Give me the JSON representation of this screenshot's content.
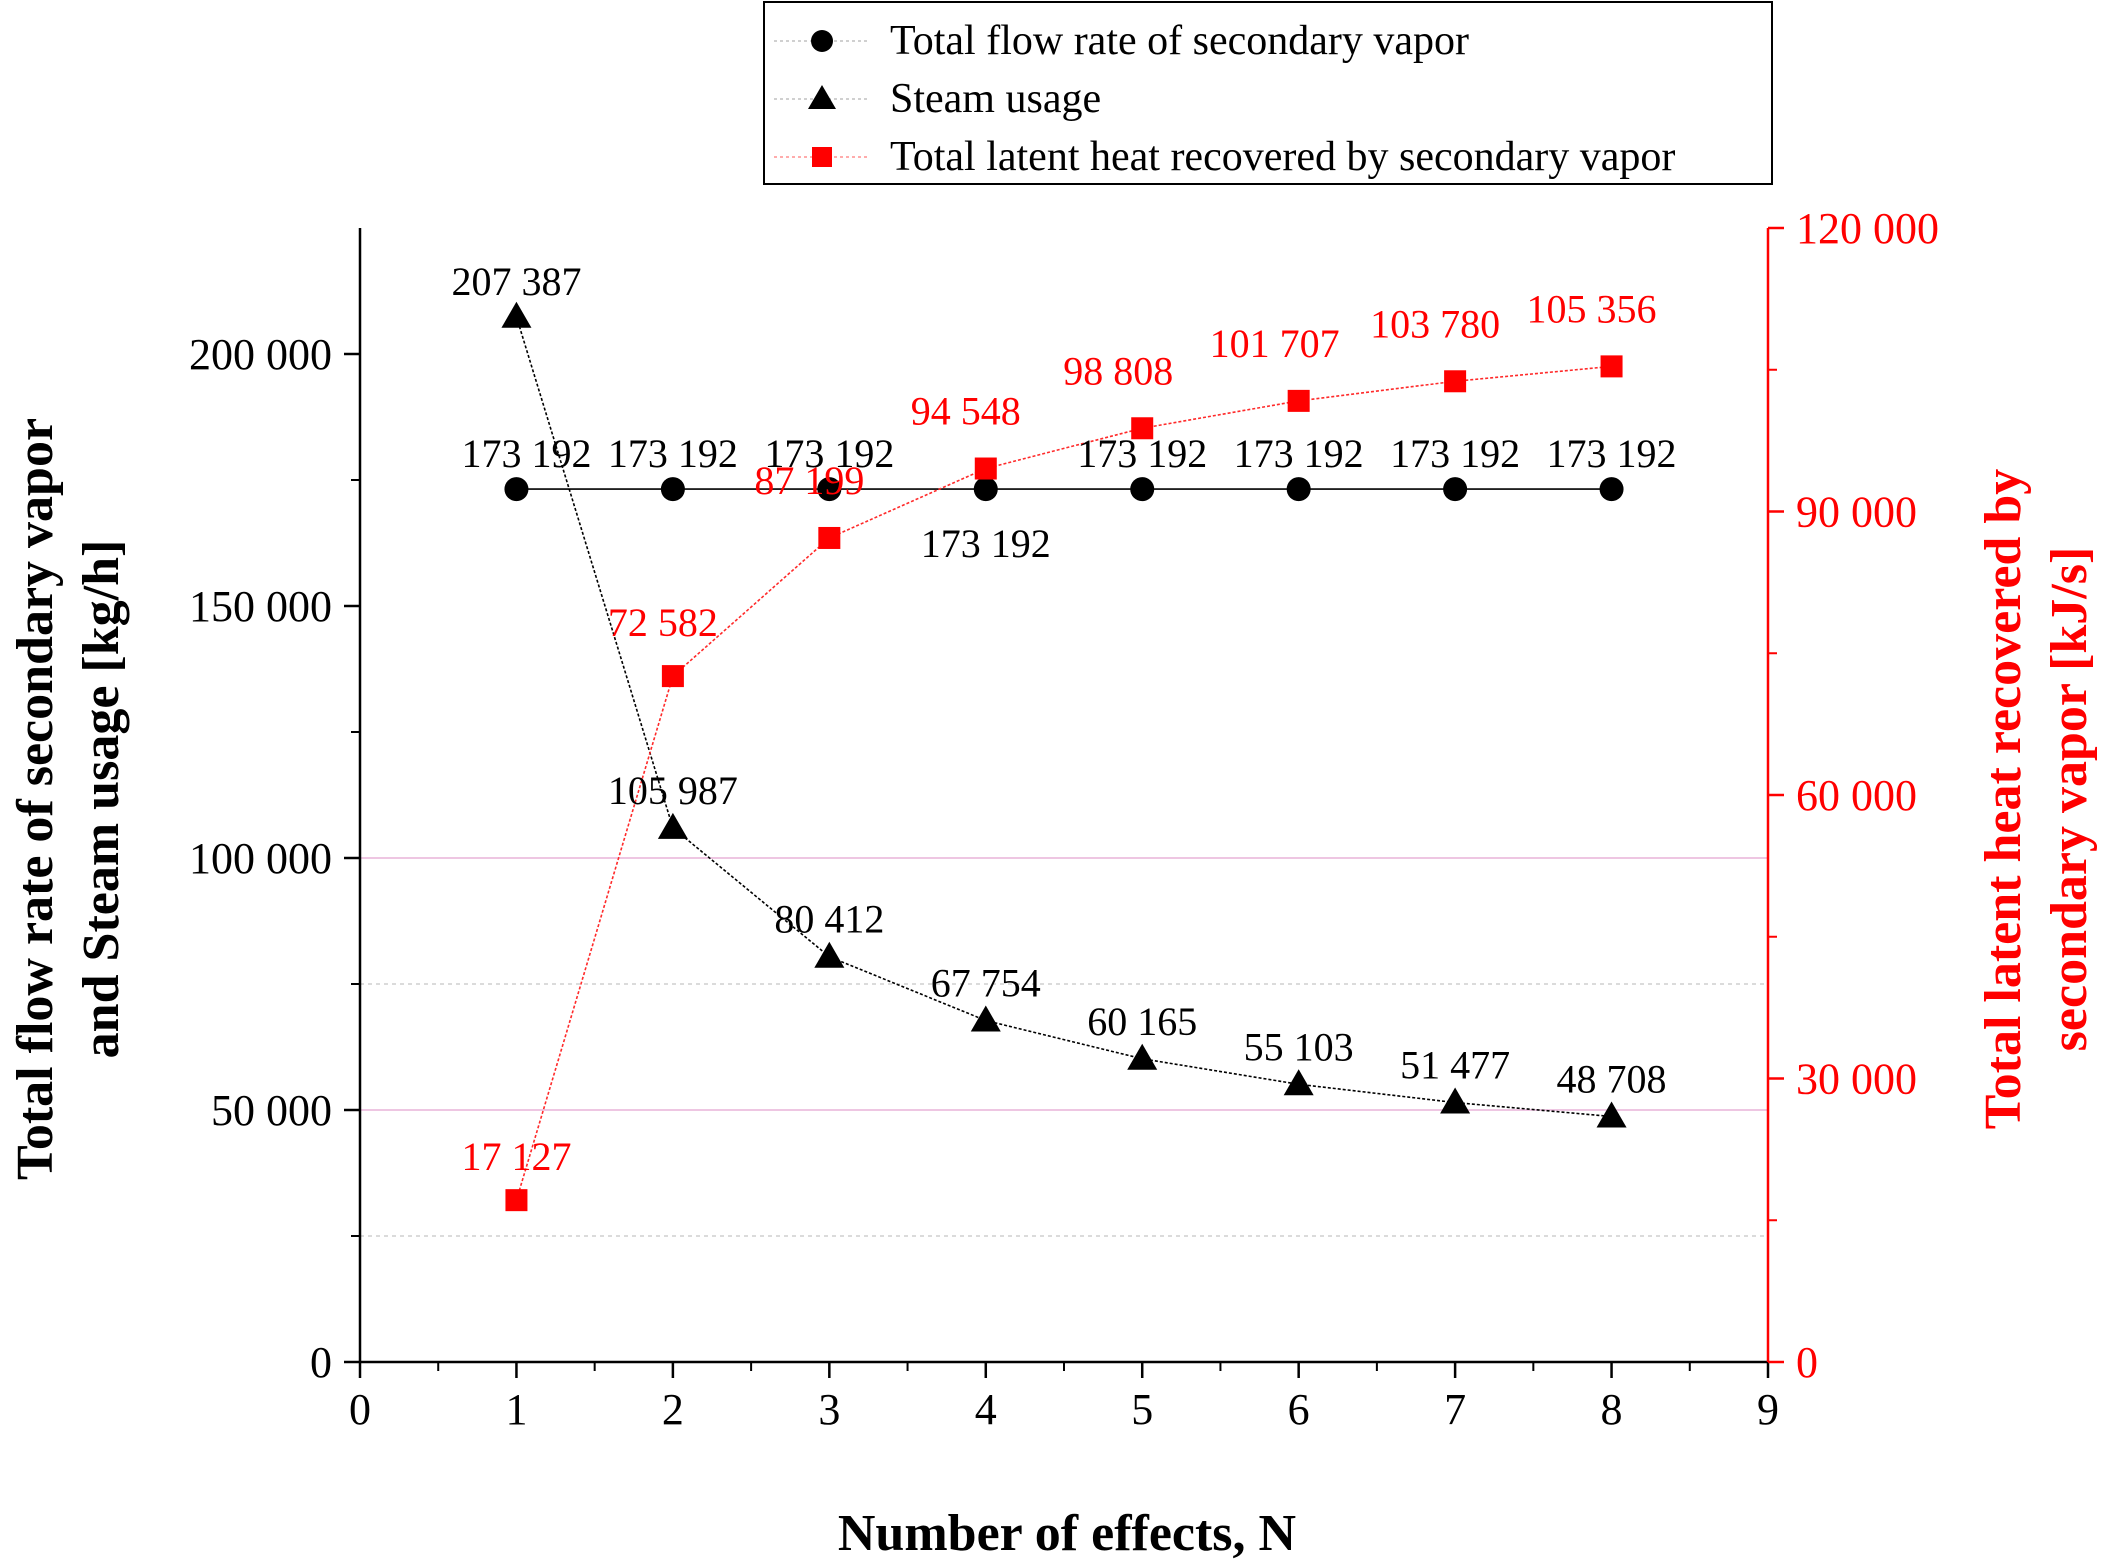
{
  "chart_data": {
    "type": "line",
    "xlabel": "Number of effects, N",
    "ylabel_left": [
      "Total flow rate of secondary vapor",
      "and Steam usage [kg/h]"
    ],
    "ylabel_right": [
      "Total latent heat recovered by",
      "secondary vapor [kJ/s]"
    ],
    "xlim": [
      0,
      9
    ],
    "ylim_left": [
      0,
      225000
    ],
    "ylim_right": [
      0,
      120000
    ],
    "x_ticks": [
      "0",
      "1",
      "2",
      "3",
      "4",
      "5",
      "6",
      "7",
      "8",
      "9"
    ],
    "y_left_ticks": [
      {
        "value": 0,
        "label": "0"
      },
      {
        "value": 50000,
        "label": "50 000"
      },
      {
        "value": 100000,
        "label": "100 000"
      },
      {
        "value": 150000,
        "label": "150 000"
      },
      {
        "value": 200000,
        "label": "200 000"
      }
    ],
    "y_right_ticks": [
      {
        "value": 0,
        "label": "0"
      },
      {
        "value": 30000,
        "label": "30 000"
      },
      {
        "value": 60000,
        "label": "60 000"
      },
      {
        "value": 90000,
        "label": "90 000"
      },
      {
        "value": 120000,
        "label": "120 000"
      }
    ],
    "grid": "horizontal dotted",
    "legend_position": "top-right",
    "x": [
      1,
      2,
      3,
      4,
      5,
      6,
      7,
      8
    ],
    "series": [
      {
        "name": "Total flow rate of secondary vapor",
        "axis": "left",
        "marker": "circle",
        "color": "#000000",
        "values": [
          173192,
          173192,
          173192,
          173192,
          173192,
          173192,
          173192,
          173192
        ],
        "labels": [
          "173 192",
          "173 192",
          "173 192",
          "173 192",
          "173 192",
          "173 192",
          "173 192",
          "173 192"
        ]
      },
      {
        "name": "Steam usage",
        "axis": "left",
        "marker": "triangle",
        "color": "#000000",
        "values": [
          207387,
          105987,
          80412,
          67754,
          60165,
          55103,
          51477,
          48708
        ],
        "labels": [
          "207 387",
          "105 987",
          "80 412",
          "67 754",
          "60 165",
          "55 103",
          "51 477",
          "48 708"
        ]
      },
      {
        "name": "Total latent heat recovered by secondary vapor",
        "axis": "right",
        "marker": "square",
        "color": "#ff0000",
        "values": [
          17127,
          72582,
          87199,
          94548,
          98808,
          101707,
          103780,
          105356
        ],
        "labels": [
          "17 127",
          "72 582",
          "87 199",
          "94 548",
          "98 808",
          "101 707",
          "103 780",
          "105 356"
        ]
      }
    ]
  }
}
